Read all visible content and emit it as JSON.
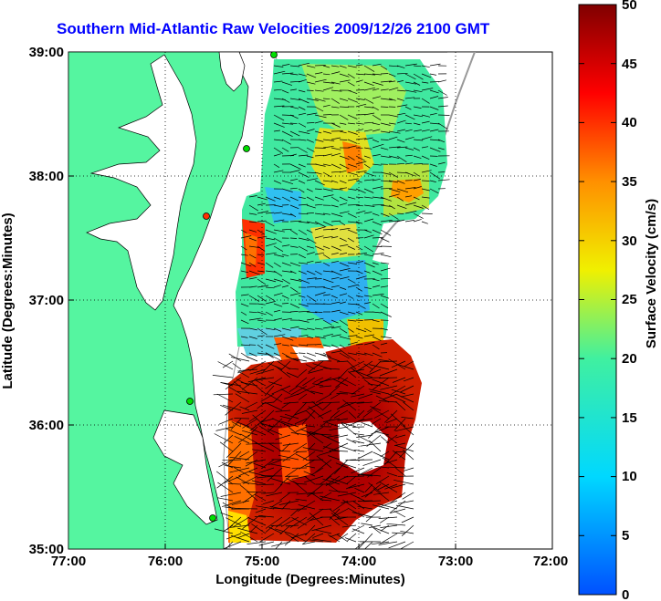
{
  "title": "Southern Mid-Atlantic Raw Velocities 2009/12/26 2100 GMT",
  "xlabel": "Longitude (Degrees:Minutes)",
  "ylabel": "Latitude (Degrees:Minutes)",
  "x_ticks": [
    "77:00",
    "76:00",
    "75:00",
    "74:00",
    "73:00",
    "72:00"
  ],
  "y_ticks": [
    "39:00",
    "38:00",
    "37:00",
    "36:00",
    "35:00"
  ],
  "colorbar": {
    "label": "Surface Velocity (cm/s)",
    "ticks": [
      "50",
      "45",
      "40",
      "35",
      "30",
      "25",
      "20",
      "15",
      "10",
      "5",
      "0"
    ],
    "min": 0,
    "max": 50
  },
  "colors": {
    "land": "#55f5a0",
    "title": "#0000ff",
    "water": "#ffffff"
  },
  "chart_data": {
    "type": "heatmap",
    "title": "Southern Mid-Atlantic Raw Velocities 2009/12/26 2100 GMT",
    "xlabel": "Longitude (Degrees:Minutes)",
    "ylabel": "Latitude (Degrees:Minutes)",
    "xlim": [
      "77:00",
      "72:00"
    ],
    "ylim": [
      "35:00",
      "39:00"
    ],
    "grid": true,
    "colorbar_label": "Surface Velocity (cm/s)",
    "colorbar_range": [
      0,
      50
    ]
  }
}
